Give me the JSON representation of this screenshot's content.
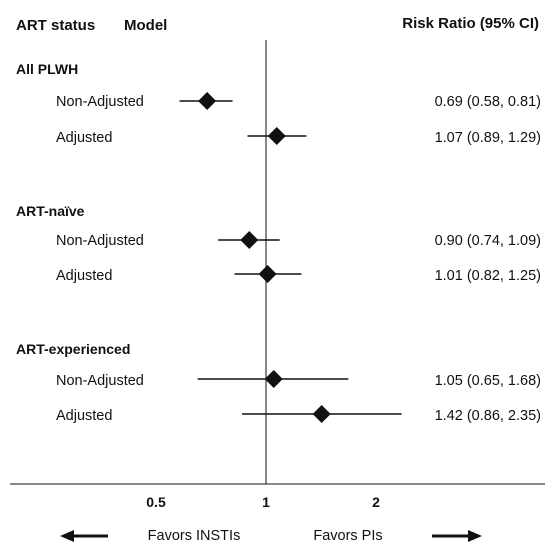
{
  "chart_data": {
    "type": "forest",
    "headers": {
      "group": "ART status",
      "model": "Model",
      "estimate": "Risk Ratio (95% CI)"
    },
    "groups": [
      {
        "label": "All PLWH",
        "rows": [
          {
            "model": "Non-Adjusted",
            "rr": 0.69,
            "lo": 0.58,
            "hi": 0.81,
            "text": "0.69 (0.58, 0.81)"
          },
          {
            "model": "Adjusted",
            "rr": 1.07,
            "lo": 0.89,
            "hi": 1.29,
            "text": "1.07 (0.89, 1.29)"
          }
        ]
      },
      {
        "label": "ART-naïve",
        "rows": [
          {
            "model": "Non-Adjusted",
            "rr": 0.9,
            "lo": 0.74,
            "hi": 1.09,
            "text": "0.90 (0.74, 1.09)"
          },
          {
            "model": "Adjusted",
            "rr": 1.01,
            "lo": 0.82,
            "hi": 1.25,
            "text": "1.01 (0.82, 1.25)"
          }
        ]
      },
      {
        "label": "ART-experienced",
        "rows": [
          {
            "model": "Non-Adjusted",
            "rr": 1.05,
            "lo": 0.65,
            "hi": 1.68,
            "text": "1.05 (0.65, 1.68)"
          },
          {
            "model": "Adjusted",
            "rr": 1.42,
            "lo": 0.86,
            "hi": 2.35,
            "text": "1.42 (0.86, 2.35)"
          }
        ]
      }
    ],
    "x_scale": "log",
    "x_ticks": [
      {
        "value": 0.5,
        "label": "0.5"
      },
      {
        "value": 1,
        "label": "1"
      },
      {
        "value": 2,
        "label": "2"
      }
    ],
    "reference_line": 1,
    "favors_left": "Favors INSTIs",
    "favors_right": "Favors PIs"
  },
  "colors": {
    "ink": "#111111",
    "background": "#ffffff"
  }
}
